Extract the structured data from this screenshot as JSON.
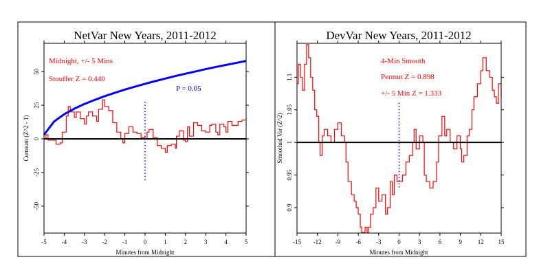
{
  "chart_data": [
    {
      "type": "line",
      "title": "NetVar New Years, 2011-2012",
      "xlabel": "Minutes from Midnight",
      "ylabel": "Cumsum (Z^2 - 1)",
      "xlim": [
        -5,
        5
      ],
      "ylim": [
        -70,
        71
      ],
      "xticks": [
        -5,
        -4,
        -3,
        -2,
        -1,
        0,
        1,
        2,
        3,
        4,
        5
      ],
      "yticks": [
        -50,
        -25,
        0,
        25,
        50
      ],
      "grid": false,
      "reference_line": 0,
      "annotations": [
        "Midnight, +/- 5 Mins",
        "Stouffer Z = 0.440",
        "P = 0.05"
      ],
      "colors": {
        "data": "#ff0000",
        "envelope": "#0000ff",
        "marker": "#0000ff"
      },
      "midnight_marker": {
        "x": 0,
        "y": [
          -30.6,
          28
        ]
      },
      "series": [
        {
          "role": "cumsum",
          "x": [
            -5,
            -4.9,
            -4.8,
            -4.6,
            -4.4,
            -4.2,
            -4.1,
            -3.9,
            -3.8,
            -3.7,
            -3.5,
            -3.4,
            -3.2,
            -3,
            -2.9,
            -2.8,
            -2.6,
            -2.4,
            -2.3,
            -2.1,
            -2,
            -1.8,
            -1.6,
            -1.4,
            -1.2,
            -1.1,
            -1,
            -0.8,
            -0.6,
            -0.4,
            -0.2,
            0,
            0.1,
            0.2,
            0.4,
            0.6,
            0.8,
            1,
            1.1,
            1.3,
            1.5,
            1.55,
            1.7,
            1.9,
            2,
            2.1,
            2.2,
            2.4,
            2.6,
            2.8,
            3,
            3.2,
            3.3,
            3.5,
            3.6,
            3.7,
            3.9,
            4,
            4.1,
            4.3,
            4.6,
            4.8,
            5
          ],
          "y": [
            0,
            3,
            -1,
            -1,
            -4,
            -3,
            5,
            17,
            24,
            20,
            16,
            20,
            15,
            11,
            17,
            20,
            17,
            13,
            22,
            29,
            24,
            21,
            12,
            5,
            0,
            -3,
            4,
            9,
            5,
            4,
            1,
            0,
            5,
            7,
            1,
            -5,
            -7,
            -10,
            -5,
            -4,
            -7,
            2,
            6,
            -1,
            -2,
            9,
            2,
            12,
            10,
            6,
            5,
            10,
            11,
            5,
            3,
            11,
            9,
            5,
            13,
            10,
            13,
            14,
            14
          ]
        },
        {
          "role": "P = 0.05",
          "x": [
            -5,
            -4.5,
            -4,
            -3.5,
            -3,
            -2.5,
            -2,
            -1.5,
            -1,
            -0.5,
            0,
            0.5,
            1,
            1.5,
            2,
            2.5,
            3,
            3.5,
            4,
            4.5,
            5
          ],
          "y": [
            3,
            12.9,
            18.3,
            22.4,
            25.9,
            28.9,
            31.7,
            34.2,
            36.6,
            38.8,
            40.9,
            42.9,
            44.8,
            46.7,
            48.4,
            50.1,
            51.8,
            53.4,
            54.9,
            56.4,
            57.9
          ]
        }
      ]
    },
    {
      "type": "line",
      "title": "DevVar New Years, 2011-2012",
      "xlabel": "Minutes from Midnight",
      "ylabel": "Smoothed Var (Z^2)",
      "xlim": [
        -15,
        15
      ],
      "ylim": [
        0.861,
        1.152
      ],
      "xticks": [
        -15,
        -12,
        -9,
        -6,
        -3,
        0,
        3,
        6,
        9,
        12,
        15
      ],
      "yticks": [
        0.9,
        0.95,
        1,
        1.05,
        1.1
      ],
      "grid": false,
      "reference_line": 1,
      "annotations": [
        "4-Min Smooth",
        "Permut Z = 0.898",
        "+/- 5 Min Z = 1.333"
      ],
      "colors": {
        "data": "#ff0000",
        "marker": "#0000ff"
      },
      "midnight_marker": {
        "x": 0,
        "y": [
          0.931,
          1.063
        ]
      },
      "series": [
        {
          "role": "smoothed",
          "x": [
            -15,
            -14.8,
            -14.5,
            -14.2,
            -13.9,
            -13.6,
            -13.3,
            -13,
            -12.7,
            -12.4,
            -12.1,
            -11.8,
            -11.6,
            -11.3,
            -11,
            -10.5,
            -10,
            -9.5,
            -9,
            -8.5,
            -8,
            -7.8,
            -7.5,
            -7,
            -6.6,
            -6.3,
            -6,
            -5.7,
            -5.5,
            -5,
            -4.7,
            -4.5,
            -4.2,
            -3.8,
            -3.4,
            -3,
            -2.5,
            -2,
            -1.7,
            -1.3,
            -1,
            -0.7,
            -0.3,
            0,
            0.5,
            1,
            1.5,
            2,
            2.2,
            2.5,
            3,
            3.5,
            3.7,
            4,
            4.5,
            5,
            5.5,
            5.8,
            6.3,
            6.7,
            7,
            7.5,
            8,
            8.5,
            9,
            9.2,
            9.5,
            10,
            10.3,
            10.7,
            11,
            11.5,
            12,
            12.3,
            12.8,
            13.3,
            13.7,
            14,
            14.3,
            14.6,
            15
          ],
          "y": [
            1.09,
            1.12,
            1.1,
            1.08,
            1.12,
            1.15,
            1.13,
            1.1,
            1.08,
            1.05,
            1.04,
            1.0,
            0.98,
            1.01,
            1.02,
            1.01,
            1.0,
            1.02,
            1.03,
            1.01,
            1.0,
            0.97,
            0.94,
            0.92,
            0.91,
            0.9,
            0.89,
            0.87,
            0.862,
            0.87,
            0.862,
            0.87,
            0.89,
            0.9,
            0.93,
            0.91,
            0.92,
            0.89,
            0.9,
            0.94,
            0.92,
            0.95,
            0.94,
            0.94,
            0.95,
            0.97,
            0.98,
            1.0,
            1.02,
            0.99,
            1.01,
            1.0,
            0.95,
            0.94,
            0.93,
            0.94,
            0.97,
            1.01,
            1.04,
            1.01,
            1.02,
            1.0,
            0.99,
            1.01,
            0.99,
            0.97,
            0.98,
            1.01,
            1.02,
            1.05,
            1.07,
            1.09,
            1.11,
            1.13,
            1.11,
            1.1,
            1.08,
            1.07,
            1.06,
            1.09,
            1.07
          ]
        }
      ]
    }
  ]
}
